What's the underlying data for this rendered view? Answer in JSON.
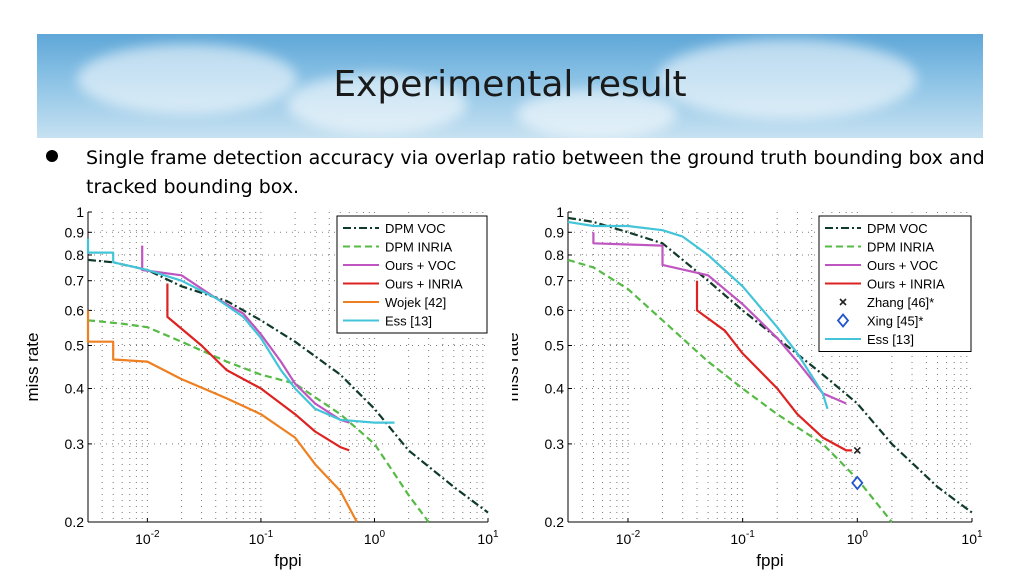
{
  "slide": {
    "title": "Experimental result",
    "bullet": "Single frame detection accuracy via overlap ratio between the ground truth bounding box and tracked bounding box."
  },
  "chart_data": [
    {
      "type": "line",
      "xlabel": "fppi",
      "ylabel": "miss rate",
      "xscale": "log",
      "yscale": "log",
      "xlim": [
        0.003,
        10
      ],
      "ylim": [
        0.2,
        1
      ],
      "grid": true,
      "legend_position": "top-right",
      "x_tick_labels": [
        "10^-2",
        "10^-1",
        "10^0",
        "10^1"
      ],
      "y_tick_labels": [
        "0.2",
        "0.3",
        "0.4",
        "0.5",
        "0.6",
        "0.7",
        "0.8",
        "0.9",
        "1"
      ],
      "series": [
        {
          "name": "DPM VOC",
          "color": "#0f3a2a",
          "dash": "dashdot",
          "points": [
            [
              0.003,
              0.78
            ],
            [
              0.005,
              0.77
            ],
            [
              0.01,
              0.74
            ],
            [
              0.02,
              0.68
            ],
            [
              0.05,
              0.63
            ],
            [
              0.1,
              0.57
            ],
            [
              0.2,
              0.51
            ],
            [
              0.5,
              0.43
            ],
            [
              1,
              0.36
            ],
            [
              2,
              0.29
            ],
            [
              5,
              0.24
            ],
            [
              10,
              0.21
            ]
          ]
        },
        {
          "name": "DPM INRIA",
          "color": "#55bb44",
          "dash": "dashed",
          "points": [
            [
              0.003,
              0.57
            ],
            [
              0.006,
              0.56
            ],
            [
              0.01,
              0.55
            ],
            [
              0.02,
              0.51
            ],
            [
              0.05,
              0.46
            ],
            [
              0.1,
              0.43
            ],
            [
              0.2,
              0.41
            ],
            [
              0.5,
              0.35
            ],
            [
              1,
              0.3
            ],
            [
              2,
              0.23
            ],
            [
              3,
              0.2
            ]
          ]
        },
        {
          "name": "Ours + VOC",
          "color": "#bf55c0",
          "dash": "solid",
          "points": [
            [
              0.009,
              0.84
            ],
            [
              0.009,
              0.74
            ],
            [
              0.02,
              0.72
            ],
            [
              0.04,
              0.64
            ],
            [
              0.07,
              0.59
            ],
            [
              0.1,
              0.53
            ],
            [
              0.15,
              0.46
            ],
            [
              0.2,
              0.41
            ],
            [
              0.3,
              0.37
            ],
            [
              0.5,
              0.34
            ],
            [
              0.6,
              0.335
            ]
          ]
        },
        {
          "name": "Ours + INRIA",
          "color": "#dd2222",
          "dash": "solid",
          "points": [
            [
              0.015,
              0.69
            ],
            [
              0.015,
              0.58
            ],
            [
              0.03,
              0.5
            ],
            [
              0.05,
              0.44
            ],
            [
              0.1,
              0.4
            ],
            [
              0.2,
              0.35
            ],
            [
              0.3,
              0.32
            ],
            [
              0.5,
              0.295
            ],
            [
              0.6,
              0.29
            ]
          ]
        },
        {
          "name": "Wojek [42]",
          "color": "#ee8022",
          "dash": "solid",
          "points": [
            [
              0.003,
              0.6
            ],
            [
              0.003,
              0.51
            ],
            [
              0.005,
              0.51
            ],
            [
              0.005,
              0.465
            ],
            [
              0.01,
              0.46
            ],
            [
              0.02,
              0.42
            ],
            [
              0.05,
              0.38
            ],
            [
              0.1,
              0.35
            ],
            [
              0.2,
              0.31
            ],
            [
              0.3,
              0.27
            ],
            [
              0.5,
              0.235
            ],
            [
              0.7,
              0.2
            ]
          ]
        },
        {
          "name": "Ess [13]",
          "color": "#44c4d8",
          "dash": "solid",
          "points": [
            [
              0.003,
              0.87
            ],
            [
              0.003,
              0.81
            ],
            [
              0.005,
              0.81
            ],
            [
              0.005,
              0.77
            ],
            [
              0.01,
              0.74
            ],
            [
              0.02,
              0.7
            ],
            [
              0.04,
              0.64
            ],
            [
              0.07,
              0.58
            ],
            [
              0.1,
              0.52
            ],
            [
              0.15,
              0.44
            ],
            [
              0.2,
              0.4
            ],
            [
              0.3,
              0.36
            ],
            [
              0.5,
              0.34
            ],
            [
              1,
              0.335
            ],
            [
              1.5,
              0.335
            ]
          ]
        }
      ]
    },
    {
      "type": "line",
      "xlabel": "fppi",
      "ylabel": "miss rate",
      "xscale": "log",
      "yscale": "log",
      "xlim": [
        0.003,
        10
      ],
      "ylim": [
        0.2,
        1
      ],
      "grid": true,
      "legend_position": "top-right",
      "x_tick_labels": [
        "10^-2",
        "10^-1",
        "10^0",
        "10^1"
      ],
      "y_tick_labels": [
        "0.2",
        "0.3",
        "0.4",
        "0.5",
        "0.6",
        "0.7",
        "0.8",
        "0.9",
        "1"
      ],
      "series": [
        {
          "name": "DPM VOC",
          "color": "#0f3a2a",
          "dash": "dashdot",
          "points": [
            [
              0.003,
              0.97
            ],
            [
              0.005,
              0.95
            ],
            [
              0.01,
              0.9
            ],
            [
              0.02,
              0.85
            ],
            [
              0.05,
              0.7
            ],
            [
              0.1,
              0.6
            ],
            [
              0.2,
              0.52
            ],
            [
              0.5,
              0.43
            ],
            [
              1,
              0.37
            ],
            [
              2,
              0.3
            ],
            [
              5,
              0.24
            ],
            [
              10,
              0.21
            ]
          ]
        },
        {
          "name": "DPM INRIA",
          "color": "#55bb44",
          "dash": "dashed",
          "points": [
            [
              0.003,
              0.78
            ],
            [
              0.005,
              0.75
            ],
            [
              0.01,
              0.67
            ],
            [
              0.02,
              0.57
            ],
            [
              0.05,
              0.46
            ],
            [
              0.1,
              0.4
            ],
            [
              0.2,
              0.35
            ],
            [
              0.5,
              0.3
            ],
            [
              1,
              0.25
            ],
            [
              2,
              0.2
            ]
          ]
        },
        {
          "name": "Ours + VOC",
          "color": "#bf55c0",
          "dash": "solid",
          "points": [
            [
              0.005,
              0.9
            ],
            [
              0.005,
              0.85
            ],
            [
              0.02,
              0.84
            ],
            [
              0.02,
              0.76
            ],
            [
              0.05,
              0.72
            ],
            [
              0.1,
              0.62
            ],
            [
              0.2,
              0.52
            ],
            [
              0.3,
              0.46
            ],
            [
              0.5,
              0.39
            ],
            [
              0.8,
              0.37
            ]
          ]
        },
        {
          "name": "Ours + INRIA",
          "color": "#dd2222",
          "dash": "solid",
          "points": [
            [
              0.04,
              0.7
            ],
            [
              0.04,
              0.6
            ],
            [
              0.07,
              0.54
            ],
            [
              0.1,
              0.48
            ],
            [
              0.2,
              0.4
            ],
            [
              0.3,
              0.35
            ],
            [
              0.5,
              0.31
            ],
            [
              0.8,
              0.29
            ],
            [
              0.9,
              0.29
            ]
          ]
        },
        {
          "name": "Ess [13]",
          "color": "#44c4d8",
          "dash": "solid",
          "points": [
            [
              0.003,
              0.95
            ],
            [
              0.005,
              0.93
            ],
            [
              0.01,
              0.93
            ],
            [
              0.02,
              0.91
            ],
            [
              0.03,
              0.88
            ],
            [
              0.05,
              0.8
            ],
            [
              0.1,
              0.68
            ],
            [
              0.2,
              0.55
            ],
            [
              0.3,
              0.48
            ],
            [
              0.5,
              0.39
            ],
            [
              0.55,
              0.36
            ]
          ]
        }
      ],
      "markers": [
        {
          "name": "Zhang [46]*",
          "symbol": "x",
          "color": "#222222",
          "x": 1.0,
          "y": 0.29
        },
        {
          "name": "Xing [45]*",
          "symbol": "diamond",
          "color": "#2255cc",
          "x": 1.0,
          "y": 0.245
        }
      ]
    }
  ]
}
